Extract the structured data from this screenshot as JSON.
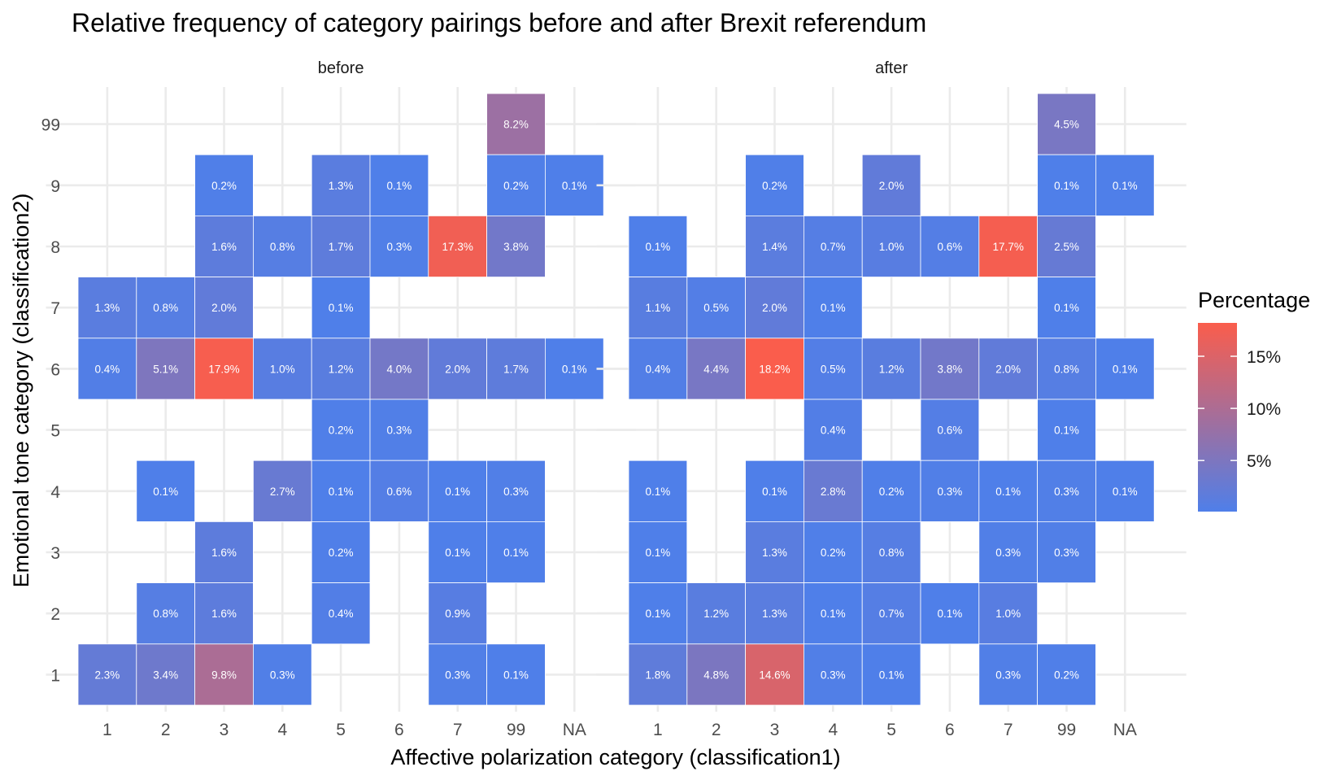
{
  "chart_data": {
    "type": "heatmap",
    "title": "Relative frequency of category pairings before and after Brexit referendum",
    "xlabel": "Affective polarization category (classification1)",
    "ylabel": "Emotional tone category (classification2)",
    "x_categories": [
      "1",
      "2",
      "3",
      "4",
      "5",
      "6",
      "7",
      "99",
      "NA"
    ],
    "y_categories": [
      "1",
      "2",
      "3",
      "4",
      "5",
      "6",
      "7",
      "8",
      "9",
      "99"
    ],
    "legend": {
      "title": "Percentage",
      "position": "right",
      "ticks": [
        "5%",
        "10%",
        "15%"
      ],
      "range": [
        0.1,
        18.2
      ],
      "color_low": "#4f7fe9",
      "color_high": "#fa5d4c"
    },
    "grid": true,
    "panels": [
      {
        "name": "before",
        "cells": [
          {
            "x": "99",
            "y": "99",
            "value": 8.2,
            "label": "8.2%"
          },
          {
            "x": "3",
            "y": "9",
            "value": 0.2,
            "label": "0.2%"
          },
          {
            "x": "5",
            "y": "9",
            "value": 1.3,
            "label": "1.3%"
          },
          {
            "x": "6",
            "y": "9",
            "value": 0.1,
            "label": "0.1%"
          },
          {
            "x": "99",
            "y": "9",
            "value": 0.2,
            "label": "0.2%"
          },
          {
            "x": "NA",
            "y": "9",
            "value": 0.1,
            "label": "0.1%"
          },
          {
            "x": "3",
            "y": "8",
            "value": 1.6,
            "label": "1.6%"
          },
          {
            "x": "4",
            "y": "8",
            "value": 0.8,
            "label": "0.8%"
          },
          {
            "x": "5",
            "y": "8",
            "value": 1.7,
            "label": "1.7%"
          },
          {
            "x": "6",
            "y": "8",
            "value": 0.3,
            "label": "0.3%"
          },
          {
            "x": "7",
            "y": "8",
            "value": 17.3,
            "label": "17.3%"
          },
          {
            "x": "99",
            "y": "8",
            "value": 3.8,
            "label": "3.8%"
          },
          {
            "x": "1",
            "y": "7",
            "value": 1.3,
            "label": "1.3%"
          },
          {
            "x": "2",
            "y": "7",
            "value": 0.8,
            "label": "0.8%"
          },
          {
            "x": "3",
            "y": "7",
            "value": 2.0,
            "label": "2.0%"
          },
          {
            "x": "5",
            "y": "7",
            "value": 0.1,
            "label": "0.1%"
          },
          {
            "x": "1",
            "y": "6",
            "value": 0.4,
            "label": "0.4%"
          },
          {
            "x": "2",
            "y": "6",
            "value": 5.1,
            "label": "5.1%"
          },
          {
            "x": "3",
            "y": "6",
            "value": 17.9,
            "label": "17.9%"
          },
          {
            "x": "4",
            "y": "6",
            "value": 1.0,
            "label": "1.0%"
          },
          {
            "x": "5",
            "y": "6",
            "value": 1.2,
            "label": "1.2%"
          },
          {
            "x": "6",
            "y": "6",
            "value": 4.0,
            "label": "4.0%"
          },
          {
            "x": "7",
            "y": "6",
            "value": 2.0,
            "label": "2.0%"
          },
          {
            "x": "99",
            "y": "6",
            "value": 1.7,
            "label": "1.7%"
          },
          {
            "x": "NA",
            "y": "6",
            "value": 0.1,
            "label": "0.1%"
          },
          {
            "x": "5",
            "y": "5",
            "value": 0.2,
            "label": "0.2%"
          },
          {
            "x": "6",
            "y": "5",
            "value": 0.3,
            "label": "0.3%"
          },
          {
            "x": "2",
            "y": "4",
            "value": 0.1,
            "label": "0.1%"
          },
          {
            "x": "4",
            "y": "4",
            "value": 2.7,
            "label": "2.7%"
          },
          {
            "x": "5",
            "y": "4",
            "value": 0.1,
            "label": "0.1%"
          },
          {
            "x": "6",
            "y": "4",
            "value": 0.6,
            "label": "0.6%"
          },
          {
            "x": "7",
            "y": "4",
            "value": 0.1,
            "label": "0.1%"
          },
          {
            "x": "99",
            "y": "4",
            "value": 0.3,
            "label": "0.3%"
          },
          {
            "x": "3",
            "y": "3",
            "value": 1.6,
            "label": "1.6%"
          },
          {
            "x": "5",
            "y": "3",
            "value": 0.2,
            "label": "0.2%"
          },
          {
            "x": "7",
            "y": "3",
            "value": 0.1,
            "label": "0.1%"
          },
          {
            "x": "99",
            "y": "3",
            "value": 0.1,
            "label": "0.1%"
          },
          {
            "x": "2",
            "y": "2",
            "value": 0.8,
            "label": "0.8%"
          },
          {
            "x": "3",
            "y": "2",
            "value": 1.6,
            "label": "1.6%"
          },
          {
            "x": "5",
            "y": "2",
            "value": 0.4,
            "label": "0.4%"
          },
          {
            "x": "7",
            "y": "2",
            "value": 0.9,
            "label": "0.9%"
          },
          {
            "x": "1",
            "y": "1",
            "value": 2.3,
            "label": "2.3%"
          },
          {
            "x": "2",
            "y": "1",
            "value": 3.4,
            "label": "3.4%"
          },
          {
            "x": "3",
            "y": "1",
            "value": 9.8,
            "label": "9.8%"
          },
          {
            "x": "4",
            "y": "1",
            "value": 0.3,
            "label": "0.3%"
          },
          {
            "x": "7",
            "y": "1",
            "value": 0.3,
            "label": "0.3%"
          },
          {
            "x": "99",
            "y": "1",
            "value": 0.1,
            "label": "0.1%"
          }
        ]
      },
      {
        "name": "after",
        "cells": [
          {
            "x": "99",
            "y": "99",
            "value": 4.5,
            "label": "4.5%"
          },
          {
            "x": "3",
            "y": "9",
            "value": 0.2,
            "label": "0.2%"
          },
          {
            "x": "5",
            "y": "9",
            "value": 2.0,
            "label": "2.0%"
          },
          {
            "x": "99",
            "y": "9",
            "value": 0.1,
            "label": "0.1%"
          },
          {
            "x": "NA",
            "y": "9",
            "value": 0.1,
            "label": "0.1%"
          },
          {
            "x": "1",
            "y": "8",
            "value": 0.1,
            "label": "0.1%"
          },
          {
            "x": "3",
            "y": "8",
            "value": 1.4,
            "label": "1.4%"
          },
          {
            "x": "4",
            "y": "8",
            "value": 0.7,
            "label": "0.7%"
          },
          {
            "x": "5",
            "y": "8",
            "value": 1.0,
            "label": "1.0%"
          },
          {
            "x": "6",
            "y": "8",
            "value": 0.6,
            "label": "0.6%"
          },
          {
            "x": "7",
            "y": "8",
            "value": 17.7,
            "label": "17.7%"
          },
          {
            "x": "99",
            "y": "8",
            "value": 2.5,
            "label": "2.5%"
          },
          {
            "x": "1",
            "y": "7",
            "value": 1.1,
            "label": "1.1%"
          },
          {
            "x": "2",
            "y": "7",
            "value": 0.5,
            "label": "0.5%"
          },
          {
            "x": "3",
            "y": "7",
            "value": 2.0,
            "label": "2.0%"
          },
          {
            "x": "4",
            "y": "7",
            "value": 0.1,
            "label": "0.1%"
          },
          {
            "x": "99",
            "y": "7",
            "value": 0.1,
            "label": "0.1%"
          },
          {
            "x": "1",
            "y": "6",
            "value": 0.4,
            "label": "0.4%"
          },
          {
            "x": "2",
            "y": "6",
            "value": 4.4,
            "label": "4.4%"
          },
          {
            "x": "3",
            "y": "6",
            "value": 18.2,
            "label": "18.2%"
          },
          {
            "x": "4",
            "y": "6",
            "value": 0.5,
            "label": "0.5%"
          },
          {
            "x": "5",
            "y": "6",
            "value": 1.2,
            "label": "1.2%"
          },
          {
            "x": "6",
            "y": "6",
            "value": 3.8,
            "label": "3.8%"
          },
          {
            "x": "7",
            "y": "6",
            "value": 2.0,
            "label": "2.0%"
          },
          {
            "x": "99",
            "y": "6",
            "value": 0.8,
            "label": "0.8%"
          },
          {
            "x": "NA",
            "y": "6",
            "value": 0.1,
            "label": "0.1%"
          },
          {
            "x": "4",
            "y": "5",
            "value": 0.4,
            "label": "0.4%"
          },
          {
            "x": "6",
            "y": "5",
            "value": 0.6,
            "label": "0.6%"
          },
          {
            "x": "99",
            "y": "5",
            "value": 0.1,
            "label": "0.1%"
          },
          {
            "x": "1",
            "y": "4",
            "value": 0.1,
            "label": "0.1%"
          },
          {
            "x": "3",
            "y": "4",
            "value": 0.1,
            "label": "0.1%"
          },
          {
            "x": "4",
            "y": "4",
            "value": 2.8,
            "label": "2.8%"
          },
          {
            "x": "5",
            "y": "4",
            "value": 0.2,
            "label": "0.2%"
          },
          {
            "x": "6",
            "y": "4",
            "value": 0.3,
            "label": "0.3%"
          },
          {
            "x": "7",
            "y": "4",
            "value": 0.1,
            "label": "0.1%"
          },
          {
            "x": "99",
            "y": "4",
            "value": 0.3,
            "label": "0.3%"
          },
          {
            "x": "NA",
            "y": "4",
            "value": 0.1,
            "label": "0.1%"
          },
          {
            "x": "1",
            "y": "3",
            "value": 0.1,
            "label": "0.1%"
          },
          {
            "x": "3",
            "y": "3",
            "value": 1.3,
            "label": "1.3%"
          },
          {
            "x": "4",
            "y": "3",
            "value": 0.2,
            "label": "0.2%"
          },
          {
            "x": "5",
            "y": "3",
            "value": 0.8,
            "label": "0.8%"
          },
          {
            "x": "7",
            "y": "3",
            "value": 0.3,
            "label": "0.3%"
          },
          {
            "x": "99",
            "y": "3",
            "value": 0.3,
            "label": "0.3%"
          },
          {
            "x": "1",
            "y": "2",
            "value": 0.1,
            "label": "0.1%"
          },
          {
            "x": "2",
            "y": "2",
            "value": 1.2,
            "label": "1.2%"
          },
          {
            "x": "3",
            "y": "2",
            "value": 1.3,
            "label": "1.3%"
          },
          {
            "x": "4",
            "y": "2",
            "value": 0.1,
            "label": "0.1%"
          },
          {
            "x": "5",
            "y": "2",
            "value": 0.7,
            "label": "0.7%"
          },
          {
            "x": "6",
            "y": "2",
            "value": 0.1,
            "label": "0.1%"
          },
          {
            "x": "7",
            "y": "2",
            "value": 1.0,
            "label": "1.0%"
          },
          {
            "x": "1",
            "y": "1",
            "value": 1.8,
            "label": "1.8%"
          },
          {
            "x": "2",
            "y": "1",
            "value": 4.8,
            "label": "4.8%"
          },
          {
            "x": "3",
            "y": "1",
            "value": 14.6,
            "label": "14.6%"
          },
          {
            "x": "4",
            "y": "1",
            "value": 0.3,
            "label": "0.3%"
          },
          {
            "x": "5",
            "y": "1",
            "value": 0.1,
            "label": "0.1%"
          },
          {
            "x": "7",
            "y": "1",
            "value": 0.3,
            "label": "0.3%"
          },
          {
            "x": "99",
            "y": "1",
            "value": 0.2,
            "label": "0.2%"
          }
        ]
      }
    ]
  }
}
